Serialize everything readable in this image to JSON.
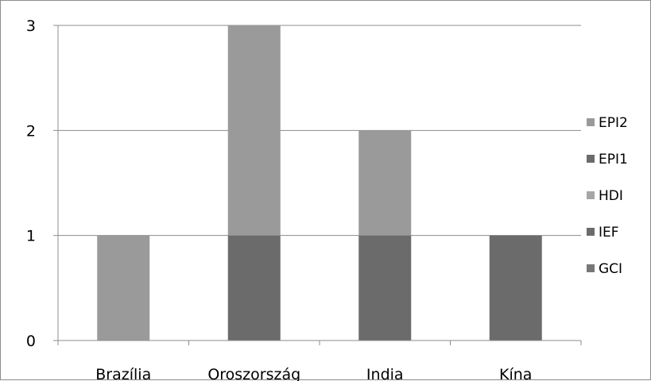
{
  "chart_data": {
    "type": "bar",
    "stacked": true,
    "title": "",
    "xlabel": "",
    "ylabel": "",
    "categories": [
      "Brazília",
      "Oroszország",
      "India",
      "Kína"
    ],
    "ylim": [
      0,
      3
    ],
    "yticks": [
      "0",
      "1",
      "2",
      "3"
    ],
    "grid": true,
    "legend_position": "right",
    "series": [
      {
        "name": "GCI",
        "color": "#777777",
        "values": [
          0,
          0,
          0,
          0
        ]
      },
      {
        "name": "IEF",
        "color": "#6b6b6b",
        "values": [
          0,
          1,
          1,
          1
        ]
      },
      {
        "name": "HDI",
        "color": "#a6a6a6",
        "values": [
          0,
          0,
          0,
          0
        ]
      },
      {
        "name": "EPI1",
        "color": "#6b6b6b",
        "values": [
          0,
          0,
          0,
          0
        ]
      },
      {
        "name": "EPI2",
        "color": "#9a9a9a",
        "values": [
          1,
          2,
          1,
          0
        ]
      }
    ],
    "legend_order": [
      "EPI2",
      "EPI1",
      "HDI",
      "IEF",
      "GCI"
    ]
  }
}
